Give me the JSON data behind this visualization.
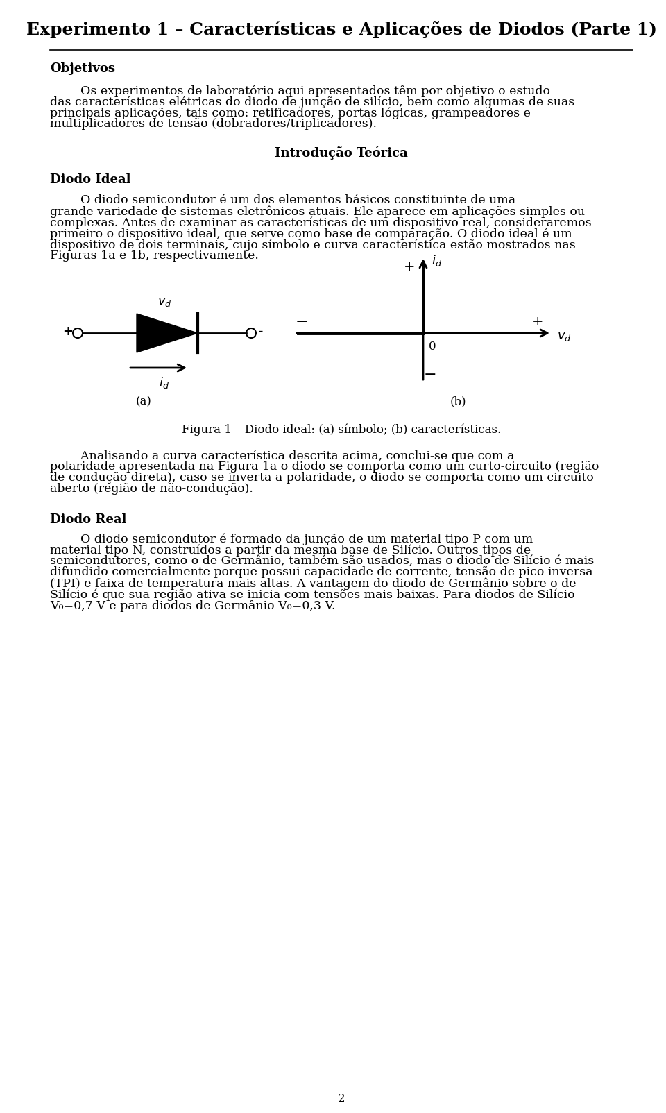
{
  "title": "Experimento 1 – Características e Aplicações de Diodos (Parte 1)",
  "bg_color": "#ffffff",
  "text_color": "#000000",
  "section_objetivos": "Objetivos",
  "section_diodo_ideal": "Diodo Ideal",
  "section_diodo_real": "Diodo Real",
  "section_intro": "Introdução Teórica",
  "figure_caption": "Figura 1 – Diodo ideal: (a) símbolo; (b) características.",
  "page_number": "2",
  "lm": 72,
  "rm": 912,
  "title_fontsize": 18,
  "heading_fontsize": 13,
  "body_fontsize": 12.5
}
